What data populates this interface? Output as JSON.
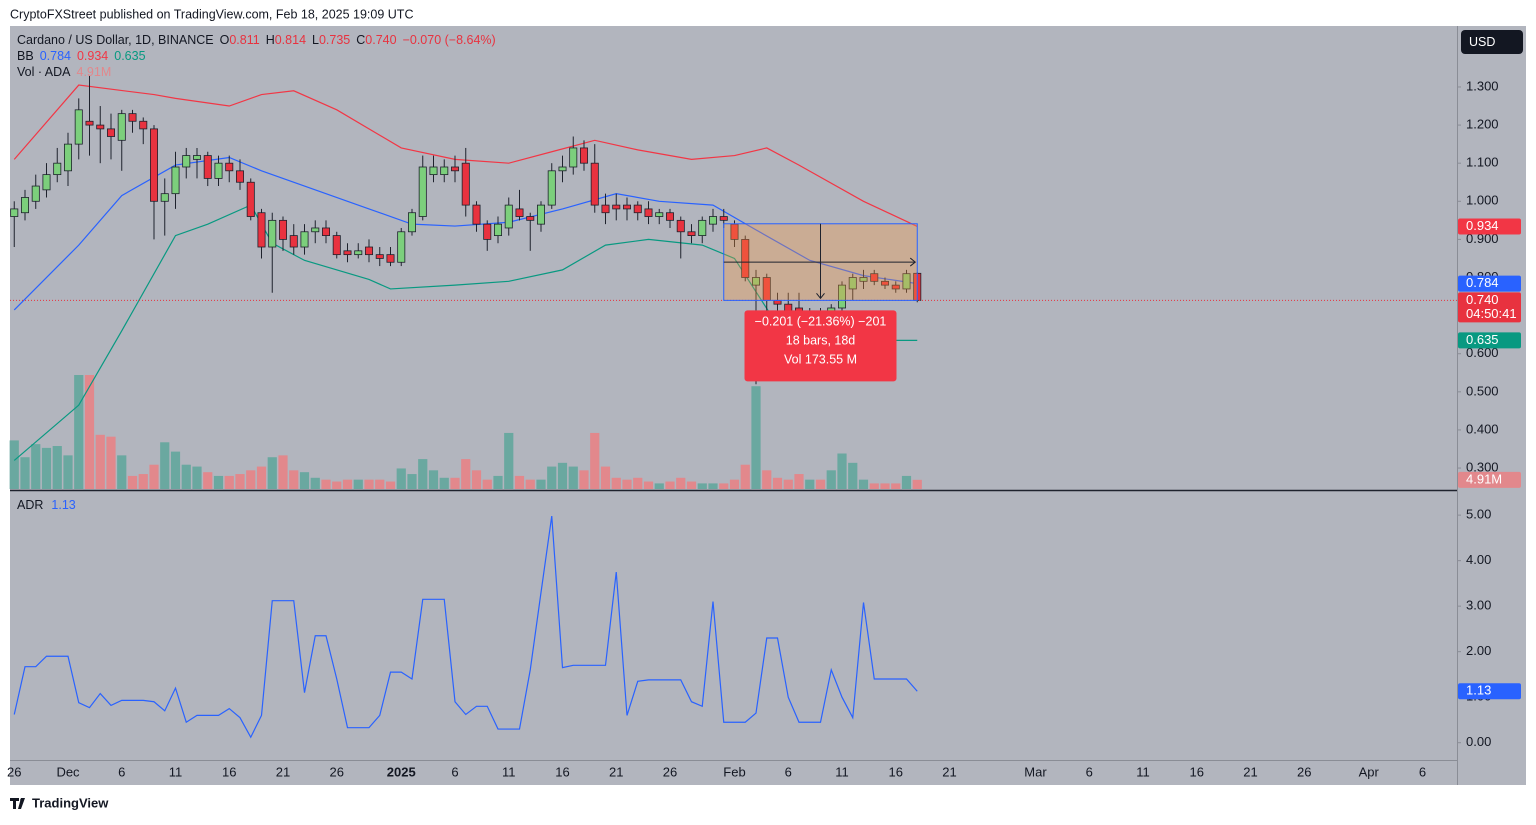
{
  "header": {
    "text": "CryptoFXStreet published on TradingView.com, Feb 18, 2025 19:09 UTC"
  },
  "footer": {
    "brand": "TradingView"
  },
  "chart_data": [
    {
      "type": "candlestick",
      "title": "Cardano / US Dollar, 1D, BINANCE",
      "currency": "USD",
      "ohlc_legend": [
        "O",
        "0.811",
        "H",
        "0.814",
        "L",
        "0.735",
        "C",
        "0.740",
        "−0.070 (−8.64%)"
      ],
      "up_color": "#7ccf7c",
      "down_color": "#e8323f",
      "x": [
        "11-26",
        "11-27",
        "11-28",
        "11-29",
        "11-30",
        "12-01",
        "12-02",
        "12-03",
        "12-04",
        "12-05",
        "12-06",
        "12-07",
        "12-08",
        "12-09",
        "12-10",
        "12-11",
        "12-12",
        "12-13",
        "12-14",
        "12-15",
        "12-16",
        "12-17",
        "12-18",
        "12-19",
        "12-20",
        "12-21",
        "12-22",
        "12-23",
        "12-24",
        "12-25",
        "12-26",
        "12-27",
        "12-28",
        "12-29",
        "12-30",
        "12-31",
        "01-01",
        "01-02",
        "01-03",
        "01-04",
        "01-05",
        "01-06",
        "01-07",
        "01-08",
        "01-09",
        "01-10",
        "01-11",
        "01-12",
        "01-13",
        "01-14",
        "01-15",
        "01-16",
        "01-17",
        "01-18",
        "01-19",
        "01-20",
        "01-21",
        "01-22",
        "01-23",
        "01-24",
        "01-25",
        "01-26",
        "01-27",
        "01-28",
        "01-29",
        "01-30",
        "01-31",
        "02-01",
        "02-02",
        "02-03",
        "02-04",
        "02-05",
        "02-06",
        "02-07",
        "02-08",
        "02-09",
        "02-10",
        "02-11",
        "02-12",
        "02-13",
        "02-14",
        "02-15",
        "02-16",
        "02-17",
        "02-18"
      ],
      "open": [
        0.96,
        0.97,
        1.0,
        1.03,
        1.07,
        1.08,
        1.15,
        1.21,
        1.2,
        1.19,
        1.16,
        1.23,
        1.21,
        1.19,
        1.0,
        1.02,
        1.09,
        1.11,
        1.12,
        1.06,
        1.1,
        1.08,
        1.05,
        0.97,
        0.88,
        0.95,
        0.91,
        0.88,
        0.92,
        0.93,
        0.91,
        0.87,
        0.86,
        0.88,
        0.86,
        0.86,
        0.84,
        0.92,
        0.96,
        1.07,
        1.07,
        1.09,
        1.1,
        0.99,
        0.94,
        0.91,
        0.93,
        0.98,
        0.96,
        0.94,
        0.99,
        1.08,
        1.09,
        1.14,
        1.1,
        0.99,
        0.99,
        0.99,
        0.99,
        0.98,
        0.96,
        0.97,
        0.95,
        0.92,
        0.91,
        0.94,
        0.96,
        0.94,
        0.9,
        0.78,
        0.8,
        0.74,
        0.73,
        0.72,
        0.7,
        0.71,
        0.69,
        0.72,
        0.77,
        0.79,
        0.81,
        0.79,
        0.78,
        0.77,
        0.811
      ],
      "high": [
        1.0,
        1.03,
        1.07,
        1.1,
        1.14,
        1.18,
        1.27,
        1.33,
        1.25,
        1.23,
        1.24,
        1.24,
        1.22,
        1.2,
        1.06,
        1.13,
        1.14,
        1.14,
        1.13,
        1.12,
        1.12,
        1.11,
        1.06,
        0.98,
        0.97,
        0.96,
        0.94,
        0.94,
        0.95,
        0.95,
        0.92,
        0.89,
        0.89,
        0.9,
        0.88,
        0.88,
        0.93,
        0.98,
        1.12,
        1.12,
        1.11,
        1.12,
        1.14,
        1.0,
        0.95,
        0.96,
        1.01,
        1.03,
        0.97,
        1.0,
        1.1,
        1.12,
        1.17,
        1.16,
        1.15,
        1.02,
        1.02,
        1.01,
        1.0,
        1.0,
        0.98,
        0.98,
        0.96,
        0.94,
        0.96,
        0.98,
        0.98,
        0.95,
        0.91,
        0.82,
        0.81,
        0.76,
        0.76,
        0.76,
        0.72,
        0.72,
        0.73,
        0.79,
        0.81,
        0.82,
        0.82,
        0.8,
        0.79,
        0.82,
        0.814
      ],
      "low": [
        0.88,
        0.95,
        0.98,
        1.01,
        1.05,
        1.04,
        1.11,
        1.12,
        1.1,
        1.11,
        1.08,
        1.18,
        1.15,
        0.9,
        0.91,
        0.98,
        1.06,
        1.06,
        1.04,
        1.04,
        1.05,
        1.03,
        0.95,
        0.85,
        0.76,
        0.87,
        0.86,
        0.86,
        0.89,
        0.89,
        0.85,
        0.84,
        0.85,
        0.84,
        0.83,
        0.83,
        0.83,
        0.91,
        0.95,
        1.05,
        1.05,
        1.05,
        0.96,
        0.92,
        0.87,
        0.89,
        0.91,
        0.95,
        0.87,
        0.92,
        0.98,
        1.05,
        1.07,
        1.08,
        0.97,
        0.94,
        0.95,
        0.95,
        0.95,
        0.94,
        0.94,
        0.93,
        0.85,
        0.89,
        0.89,
        0.92,
        0.93,
        0.88,
        0.79,
        0.52,
        0.71,
        0.7,
        0.68,
        0.68,
        0.69,
        0.67,
        0.68,
        0.71,
        0.74,
        0.77,
        0.78,
        0.77,
        0.76,
        0.76,
        0.735
      ],
      "close": [
        0.98,
        1.01,
        1.04,
        1.07,
        1.1,
        1.15,
        1.24,
        1.2,
        1.19,
        1.17,
        1.23,
        1.21,
        1.19,
        1.0,
        1.02,
        1.09,
        1.12,
        1.12,
        1.06,
        1.1,
        1.08,
        1.05,
        0.96,
        0.88,
        0.95,
        0.9,
        0.88,
        0.92,
        0.93,
        0.91,
        0.86,
        0.86,
        0.87,
        0.86,
        0.85,
        0.84,
        0.92,
        0.97,
        1.09,
        1.09,
        1.09,
        1.08,
        0.99,
        0.94,
        0.9,
        0.94,
        0.99,
        0.96,
        0.95,
        0.99,
        1.08,
        1.09,
        1.14,
        1.1,
        0.99,
        0.97,
        0.98,
        0.98,
        0.97,
        0.96,
        0.97,
        0.95,
        0.92,
        0.91,
        0.95,
        0.96,
        0.95,
        0.9,
        0.8,
        0.8,
        0.74,
        0.73,
        0.7,
        0.7,
        0.71,
        0.69,
        0.72,
        0.78,
        0.8,
        0.8,
        0.79,
        0.78,
        0.77,
        0.81,
        0.74
      ],
      "price_label": "0.740",
      "countdown": "04:50:41",
      "ylim": [
        0.245,
        1.46
      ],
      "yticks": [
        {
          "value": 1.3,
          "label": "1.300"
        },
        {
          "value": 1.2,
          "label": "1.200"
        },
        {
          "value": 1.1,
          "label": "1.100"
        },
        {
          "value": 1.0,
          "label": "1.000"
        },
        {
          "value": 0.9,
          "label": "0.900"
        },
        {
          "value": 0.8,
          "label": "0.800"
        },
        {
          "value": 0.7,
          "label": "0.700"
        },
        {
          "value": 0.6,
          "label": "0.600"
        },
        {
          "value": 0.5,
          "label": "0.500"
        },
        {
          "value": 0.4,
          "label": "0.400"
        },
        {
          "value": 0.3,
          "label": "0.300"
        }
      ],
      "xticks": [
        {
          "value": "11-26",
          "label": "26"
        },
        {
          "value": "12-01",
          "label": "Dec"
        },
        {
          "value": "12-06",
          "label": "6"
        },
        {
          "value": "12-11",
          "label": "11"
        },
        {
          "value": "12-16",
          "label": "16"
        },
        {
          "value": "12-21",
          "label": "21"
        },
        {
          "value": "12-26",
          "label": "26"
        },
        {
          "value": "01-01",
          "label": "2025"
        },
        {
          "value": "01-06",
          "label": "6"
        },
        {
          "value": "01-11",
          "label": "11"
        },
        {
          "value": "01-16",
          "label": "16"
        },
        {
          "value": "01-21",
          "label": "21"
        },
        {
          "value": "01-26",
          "label": "26"
        },
        {
          "value": "02-01",
          "label": "Feb"
        },
        {
          "value": "02-06",
          "label": "6"
        },
        {
          "value": "02-11",
          "label": "11"
        },
        {
          "value": "02-16",
          "label": "16"
        },
        {
          "value": "02-21",
          "label": "21"
        },
        {
          "value": "03-01",
          "label": "Mar"
        },
        {
          "value": "03-06",
          "label": "6"
        },
        {
          "value": "03-11",
          "label": "11"
        },
        {
          "value": "03-16",
          "label": "16"
        },
        {
          "value": "03-21",
          "label": "21"
        },
        {
          "value": "03-26",
          "label": "26"
        },
        {
          "value": "04-01",
          "label": "Apr"
        },
        {
          "value": "04-06",
          "label": "6"
        }
      ],
      "volume": {
        "name": "Vol · ADA",
        "label": "4.91M",
        "up_color": "#6aa8a0",
        "down_color": "#e2888c",
        "values": [
          26,
          17,
          24,
          22,
          23,
          18,
          61,
          61,
          29,
          28,
          18,
          7,
          8,
          13,
          25,
          20,
          13,
          12,
          9,
          7,
          7,
          8,
          10,
          12,
          17,
          18,
          10,
          9,
          6,
          5,
          4,
          5,
          5,
          5,
          5,
          4,
          11,
          8,
          16,
          10,
          6,
          6,
          16,
          10,
          5,
          7,
          30,
          7,
          5,
          5,
          12,
          14,
          12,
          10,
          30,
          12,
          6,
          5,
          6,
          4,
          3,
          4,
          6,
          4,
          3,
          3,
          3,
          5,
          13,
          55,
          10,
          6,
          5,
          8,
          5,
          5,
          10,
          19,
          14,
          5,
          3,
          3,
          3,
          7,
          4.91
        ]
      },
      "bb": {
        "name": "BB",
        "series": [
          {
            "color": "#2962ff",
            "x": [
              "11-26",
              "12-02",
              "12-06",
              "12-11",
              "12-16",
              "12-19",
              "12-23",
              "12-29",
              "01-02",
              "01-06",
              "01-11",
              "01-16",
              "01-21",
              "01-25",
              "01-30",
              "02-03",
              "02-08",
              "02-13",
              "02-18"
            ],
            "values": [
              0.715,
              0.885,
              1.015,
              1.095,
              1.115,
              1.08,
              1.04,
              0.98,
              0.94,
              0.935,
              0.945,
              0.98,
              1.02,
              1.0,
              0.99,
              0.925,
              0.845,
              0.805,
              0.784
            ]
          },
          {
            "color": "#f23645",
            "x": [
              "11-26",
              "12-02",
              "12-09",
              "12-11",
              "12-16",
              "12-19",
              "12-22",
              "12-26",
              "01-01",
              "01-06",
              "01-11",
              "01-15",
              "01-19",
              "01-23",
              "01-28",
              "02-01",
              "02-04",
              "02-07",
              "02-13",
              "02-18"
            ],
            "values": [
              1.11,
              1.305,
              1.28,
              1.27,
              1.25,
              1.28,
              1.29,
              1.24,
              1.14,
              1.11,
              1.1,
              1.13,
              1.16,
              1.135,
              1.11,
              1.12,
              1.14,
              1.095,
              1.0,
              0.934
            ]
          },
          {
            "color": "#089981",
            "x": [
              "11-26",
              "12-02",
              "12-06",
              "12-11",
              "12-14",
              "12-18",
              "12-20",
              "12-23",
              "12-29",
              "12-31",
              "01-06",
              "01-11",
              "01-16",
              "01-20",
              "01-24",
              "01-29",
              "02-01",
              "02-05",
              "02-08",
              "02-13",
              "02-18"
            ],
            "values": [
              0.32,
              0.465,
              0.66,
              0.91,
              0.94,
              0.99,
              0.89,
              0.845,
              0.795,
              0.77,
              0.78,
              0.79,
              0.82,
              0.885,
              0.9,
              0.885,
              0.85,
              0.675,
              0.66,
              0.635,
              0.635
            ]
          }
        ]
      },
      "measure": {
        "x": [
          "01-31",
          "02-18"
        ],
        "values": [
          0.941,
          0.74
        ],
        "color": "#2962ff",
        "label_color": "#f23645",
        "labels": [
          "−0.201 (−21.36%) −201",
          "18 bars, 18d",
          "Vol 173.55 M"
        ]
      }
    },
    {
      "type": "line",
      "title": "ADR",
      "color": "#2962ff",
      "x": [
        "11-26",
        "11-27",
        "11-28",
        "11-29",
        "11-30",
        "12-01",
        "12-02",
        "12-03",
        "12-04",
        "12-05",
        "12-06",
        "12-07",
        "12-08",
        "12-09",
        "12-10",
        "12-11",
        "12-12",
        "12-13",
        "12-14",
        "12-15",
        "12-16",
        "12-17",
        "12-18",
        "12-19",
        "12-20",
        "12-21",
        "12-22",
        "12-23",
        "12-24",
        "12-25",
        "12-26",
        "12-27",
        "12-28",
        "12-29",
        "12-30",
        "12-31",
        "01-01",
        "01-02",
        "01-03",
        "01-04",
        "01-05",
        "01-06",
        "01-07",
        "01-08",
        "01-09",
        "01-10",
        "01-11",
        "01-12",
        "01-13",
        "01-14",
        "01-15",
        "01-16",
        "01-17",
        "01-18",
        "01-19",
        "01-20",
        "01-21",
        "01-22",
        "01-23",
        "01-24",
        "01-25",
        "01-26",
        "01-27",
        "01-28",
        "01-29",
        "01-30",
        "01-31",
        "02-01",
        "02-02",
        "02-03",
        "02-04",
        "02-05",
        "02-06",
        "02-07",
        "02-08",
        "02-09",
        "02-10",
        "02-11",
        "02-12",
        "02-13",
        "02-14",
        "02-15",
        "02-16",
        "02-17",
        "02-18"
      ],
      "values": [
        0.62,
        1.67,
        1.67,
        1.9,
        1.9,
        1.9,
        0.88,
        0.77,
        1.08,
        0.82,
        0.93,
        0.93,
        0.93,
        0.9,
        0.7,
        1.2,
        0.45,
        0.6,
        0.6,
        0.6,
        0.75,
        0.55,
        0.12,
        0.6,
        3.12,
        3.12,
        3.12,
        1.1,
        2.35,
        2.35,
        1.4,
        0.33,
        0.33,
        0.33,
        0.6,
        1.55,
        1.55,
        1.4,
        3.15,
        3.15,
        3.15,
        0.9,
        0.62,
        0.8,
        0.8,
        0.3,
        0.3,
        0.3,
        1.6,
        3.3,
        4.98,
        1.65,
        1.7,
        1.7,
        1.7,
        1.7,
        3.75,
        0.6,
        1.35,
        1.38,
        1.38,
        1.38,
        1.38,
        0.9,
        0.8,
        3.1,
        0.45,
        0.45,
        0.45,
        0.65,
        2.3,
        2.3,
        1.0,
        0.45,
        0.45,
        0.45,
        1.6,
        1.0,
        0.55,
        3.08,
        1.4,
        1.4,
        1.4,
        1.4,
        1.13
      ],
      "ylim": [
        -0.38,
        5.53
      ],
      "yticks": [
        {
          "value": 5,
          "label": "5.00"
        },
        {
          "value": 4,
          "label": "4.00"
        },
        {
          "value": 3,
          "label": "3.00"
        },
        {
          "value": 2,
          "label": "2.00"
        },
        {
          "value": 1,
          "label": "1.00"
        },
        {
          "value": 0,
          "label": "0.00"
        }
      ]
    }
  ]
}
